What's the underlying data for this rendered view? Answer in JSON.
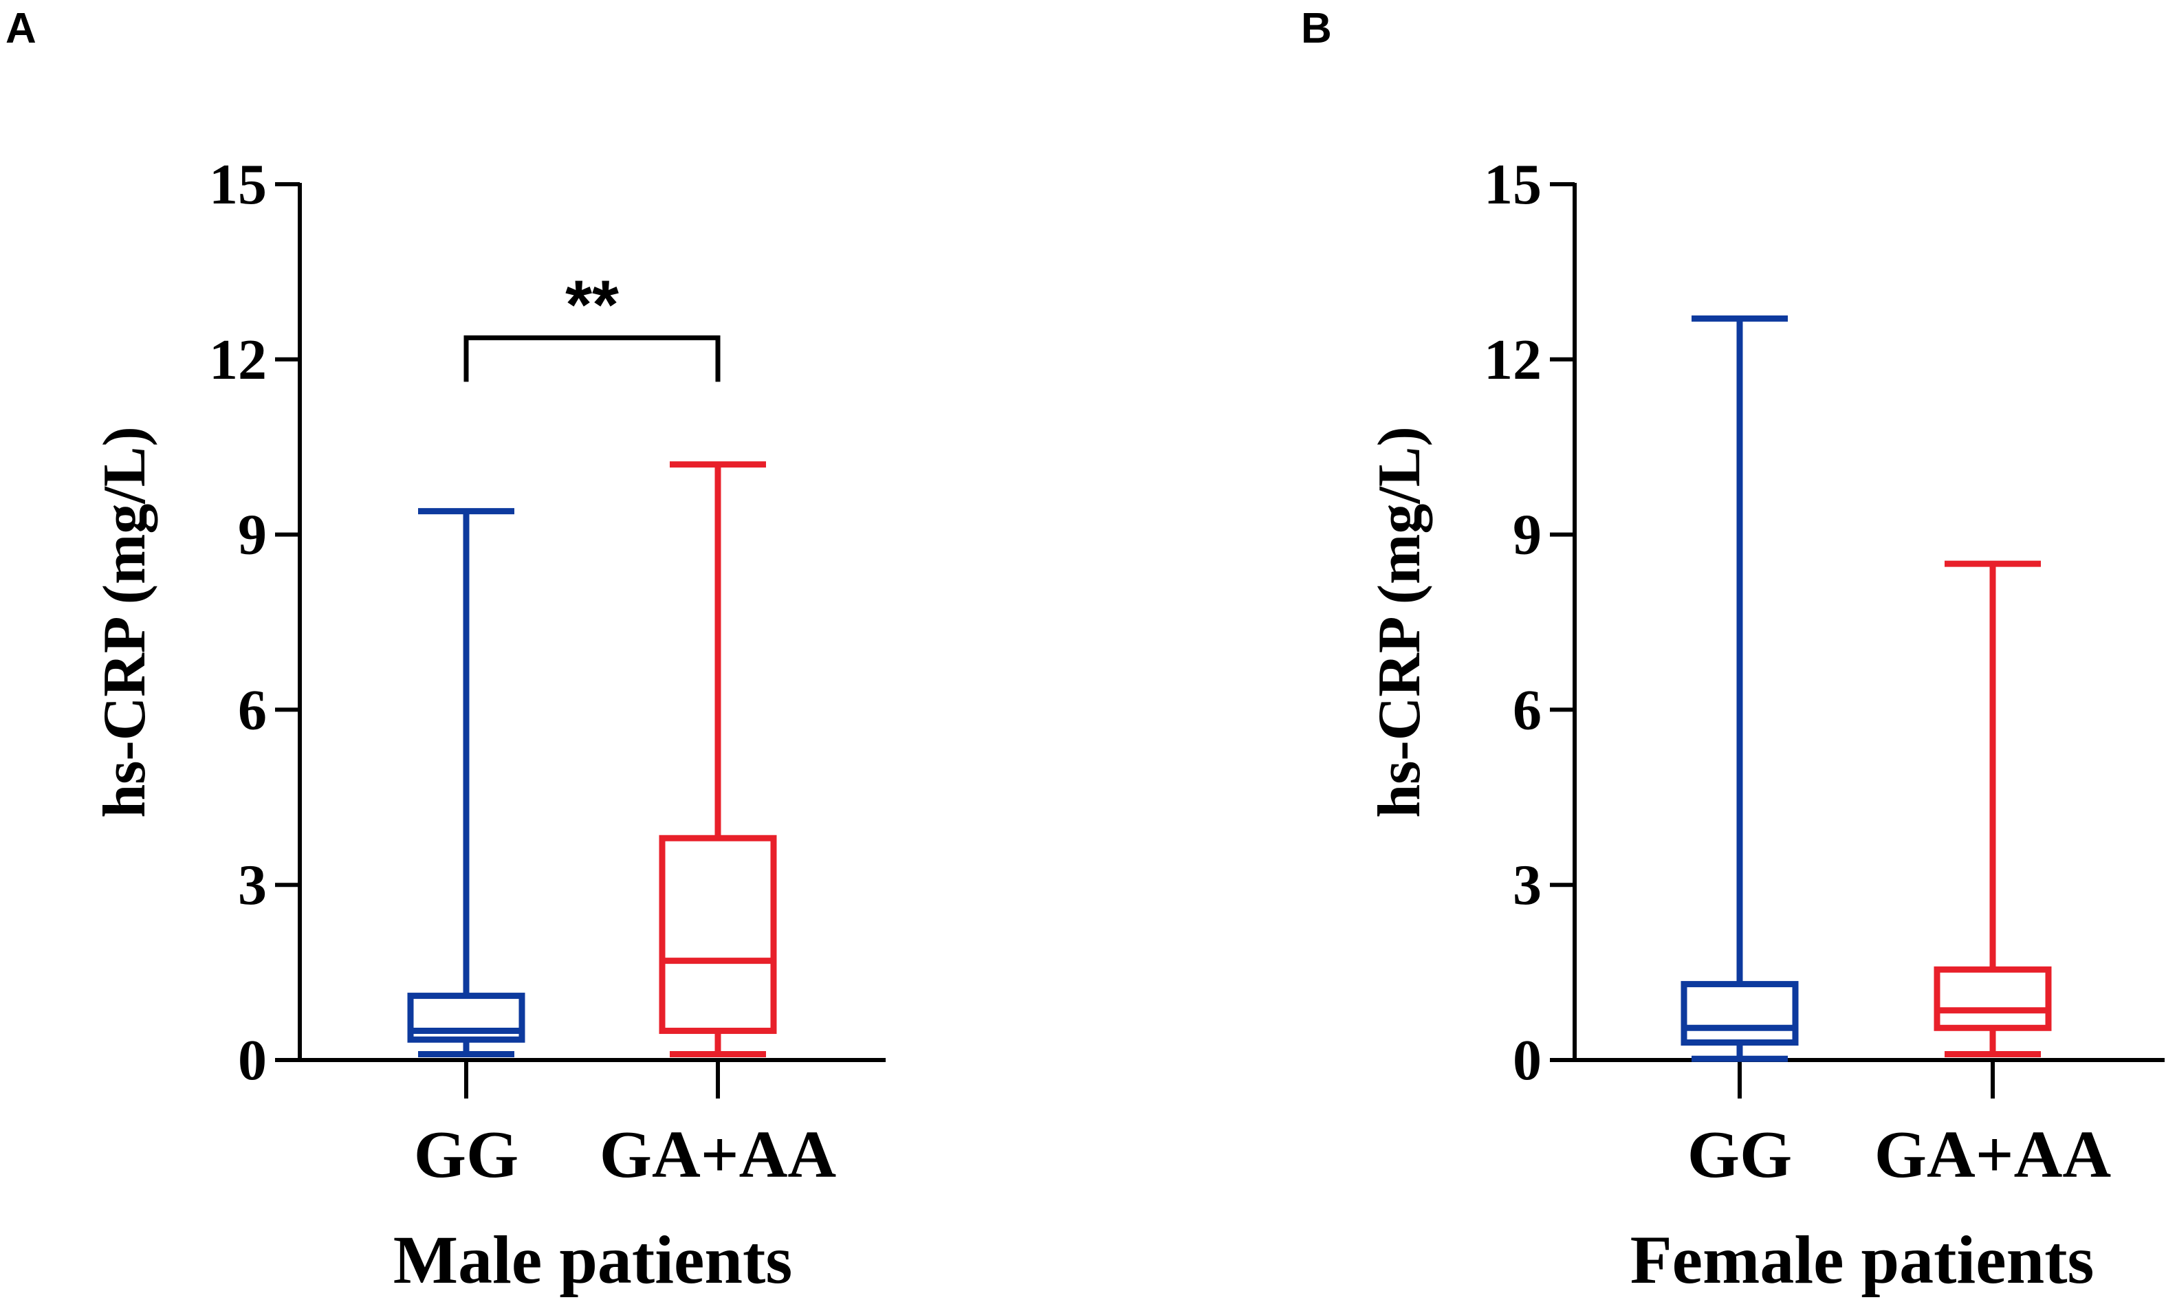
{
  "figure": {
    "panels": [
      {
        "letter": "A",
        "group_label": "Male patients"
      },
      {
        "letter": "B",
        "group_label": "Female patients"
      }
    ]
  },
  "chart_data": [
    {
      "type": "box",
      "panel": "A",
      "title": "",
      "xlabel": "Male patients",
      "ylabel": "hs-CRP (mg/L)",
      "ylim": [
        0,
        15
      ],
      "yticks": [
        0,
        3,
        6,
        9,
        12,
        15
      ],
      "categories": [
        "GG",
        "GA+AA"
      ],
      "series": [
        {
          "name": "GG",
          "color": "#0d3a9e",
          "min": 0.1,
          "q1": 0.35,
          "median": 0.5,
          "q3": 1.1,
          "max": 9.4
        },
        {
          "name": "GA+AA",
          "color": "#e8202a",
          "min": 0.1,
          "q1": 0.5,
          "median": 1.7,
          "q3": 3.8,
          "max": 10.2
        }
      ],
      "annotations": [
        {
          "text": "**",
          "between": [
            "GG",
            "GA+AA"
          ],
          "bracket_y": 12.3
        }
      ]
    },
    {
      "type": "box",
      "panel": "B",
      "title": "",
      "xlabel": "Female patients",
      "ylabel": "hs-CRP (mg/L)",
      "ylim": [
        0,
        15
      ],
      "yticks": [
        0,
        3,
        6,
        9,
        12,
        15
      ],
      "categories": [
        "GG",
        "GA+AA"
      ],
      "series": [
        {
          "name": "GG",
          "color": "#0d3a9e",
          "min": 0.02,
          "q1": 0.3,
          "median": 0.55,
          "q3": 1.3,
          "max": 12.7
        },
        {
          "name": "GA+AA",
          "color": "#e8202a",
          "min": 0.1,
          "q1": 0.55,
          "median": 0.85,
          "q3": 1.55,
          "max": 8.5
        }
      ],
      "annotations": []
    }
  ]
}
